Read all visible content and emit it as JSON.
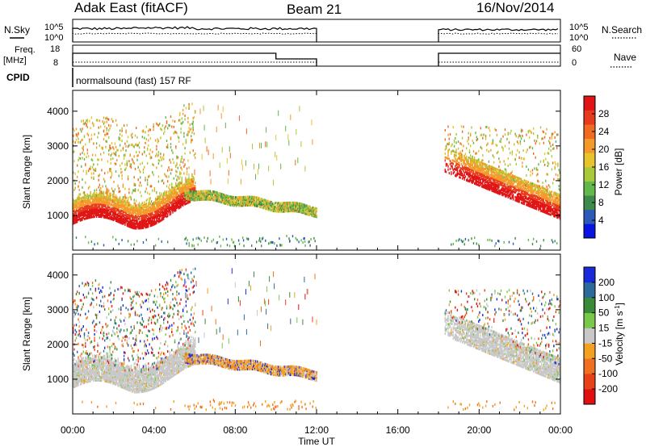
{
  "header": {
    "station": "Adak East (fitACF)",
    "beam": "Beam 21",
    "date": "16/Nov/2014"
  },
  "noise_panel": {
    "left_label": "N.Sky",
    "right_label": "N.Search",
    "ticks_left": [
      "10^5",
      "10^0"
    ],
    "ticks_right": [
      "10^5",
      "10^0"
    ]
  },
  "freq_panel": {
    "left_label_line1": "Freq.",
    "left_label_line2": "[MHz]",
    "right_label": "Nave",
    "ticks_left": [
      "18",
      "8"
    ],
    "ticks_right": [
      "60",
      "0"
    ]
  },
  "cpid": {
    "label": "CPID",
    "program": "normalsound (fast) 157 RF"
  },
  "x_axis": {
    "label": "Time UT",
    "tick_labels": [
      "00:00",
      "04:00",
      "08:00",
      "12:00",
      "16:00",
      "20:00",
      "00:00"
    ]
  },
  "chart_data": [
    {
      "type": "heatmap",
      "panel": "power",
      "ylabel": "Slant Range [km]",
      "yticks": [
        "1000",
        "2000",
        "3000",
        "4000"
      ],
      "ylim": [
        0,
        4600
      ],
      "xlim_hours": [
        0,
        24
      ],
      "colorbar": {
        "label": "Power [dB]",
        "ticks": [
          "4",
          "8",
          "12",
          "16",
          "20",
          "24",
          "28"
        ],
        "colors": [
          "#0a14e0",
          "#2d59b8",
          "#3d8a4a",
          "#62b84a",
          "#a9c93a",
          "#e8c42c",
          "#f49a2a",
          "#f06a22",
          "#e83a1c",
          "#e01414"
        ]
      },
      "data_gaps_hours": [
        [
          12,
          18
        ]
      ],
      "regions": [
        {
          "name": "low-range strong echo (morning)",
          "t": [
            0,
            6
          ],
          "range_km": [
            800,
            1500
          ],
          "power_db": 28
        },
        {
          "name": "descending trace",
          "t": [
            6,
            12
          ],
          "range_km": [
            1100,
            1700
          ],
          "power_db": 18
        },
        {
          "name": "low-range strong echo (evening)",
          "t": [
            18.5,
            24
          ],
          "range_km": [
            900,
            2200
          ],
          "power_db": 24
        }
      ]
    },
    {
      "type": "heatmap",
      "panel": "velocity",
      "ylabel": "Slant Range [km]",
      "yticks": [
        "1000",
        "2000",
        "3000",
        "4000"
      ],
      "ylim": [
        0,
        4600
      ],
      "xlim_hours": [
        0,
        24
      ],
      "colorbar": {
        "label": "Velocity [m s^-1]",
        "ticks": [
          "200",
          "100",
          "50",
          "15",
          "-15",
          "-50",
          "-100",
          "-200"
        ],
        "colors": [
          "#1a2ad8",
          "#2c6a9c",
          "#3a8a3a",
          "#7ac84a",
          "#c8c8c8",
          "#f4a020",
          "#f07020",
          "#e84018",
          "#e01010"
        ]
      },
      "data_gaps_hours": [
        [
          12,
          18
        ]
      ],
      "regions": [
        {
          "name": "ground scatter (morning)",
          "t": [
            0,
            6
          ],
          "range_km": [
            800,
            1400
          ],
          "velocity": 0
        },
        {
          "name": "descending trace",
          "t": [
            6,
            12
          ],
          "range_km": [
            1100,
            1600
          ],
          "velocity": -30
        },
        {
          "name": "ground scatter (evening)",
          "t": [
            18.5,
            24
          ],
          "range_km": [
            900,
            2200
          ],
          "velocity": 0
        }
      ]
    }
  ]
}
